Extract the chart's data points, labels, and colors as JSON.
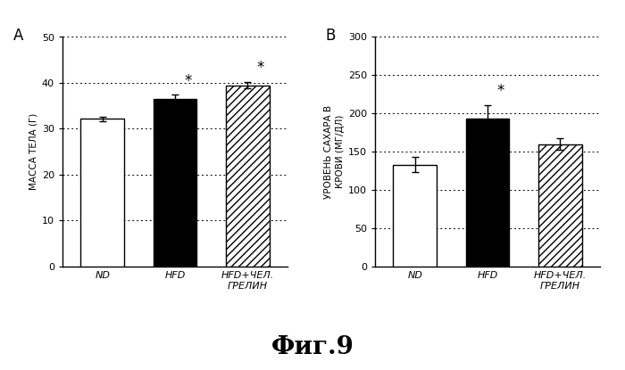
{
  "panel_A": {
    "categories": [
      "ND",
      "HFD",
      "HFD+ЧЕЛ.\nГРЕЛИН"
    ],
    "values": [
      32.2,
      36.5,
      39.5
    ],
    "errors": [
      0.5,
      0.9,
      0.7
    ],
    "bar_colors": [
      "white",
      "black",
      "white"
    ],
    "bar_hatches": [
      null,
      null,
      "////"
    ],
    "ylabel": "МАССА ТЕЛА (Г)",
    "ylim": [
      0,
      50
    ],
    "yticks": [
      0,
      10,
      20,
      30,
      40,
      50
    ],
    "significance": [
      false,
      true,
      true
    ],
    "panel_label": "A"
  },
  "panel_B": {
    "categories": [
      "ND",
      "HFD",
      "HFD+ЧЕЛ.\nГРЕЛИН"
    ],
    "values": [
      133,
      193,
      160
    ],
    "errors": [
      10,
      18,
      8
    ],
    "bar_colors": [
      "white",
      "black",
      "white"
    ],
    "bar_hatches": [
      null,
      null,
      "////"
    ],
    "ylabel": "УРОВЕНЬ САХАРА В\nКРОВИ (МГ/ДЛ)",
    "ylim": [
      0,
      300
    ],
    "yticks": [
      0,
      50,
      100,
      150,
      200,
      250,
      300
    ],
    "significance": [
      false,
      true,
      false
    ],
    "panel_label": "В"
  },
  "figure_title": "Фиг.9",
  "background_color": "#ffffff"
}
